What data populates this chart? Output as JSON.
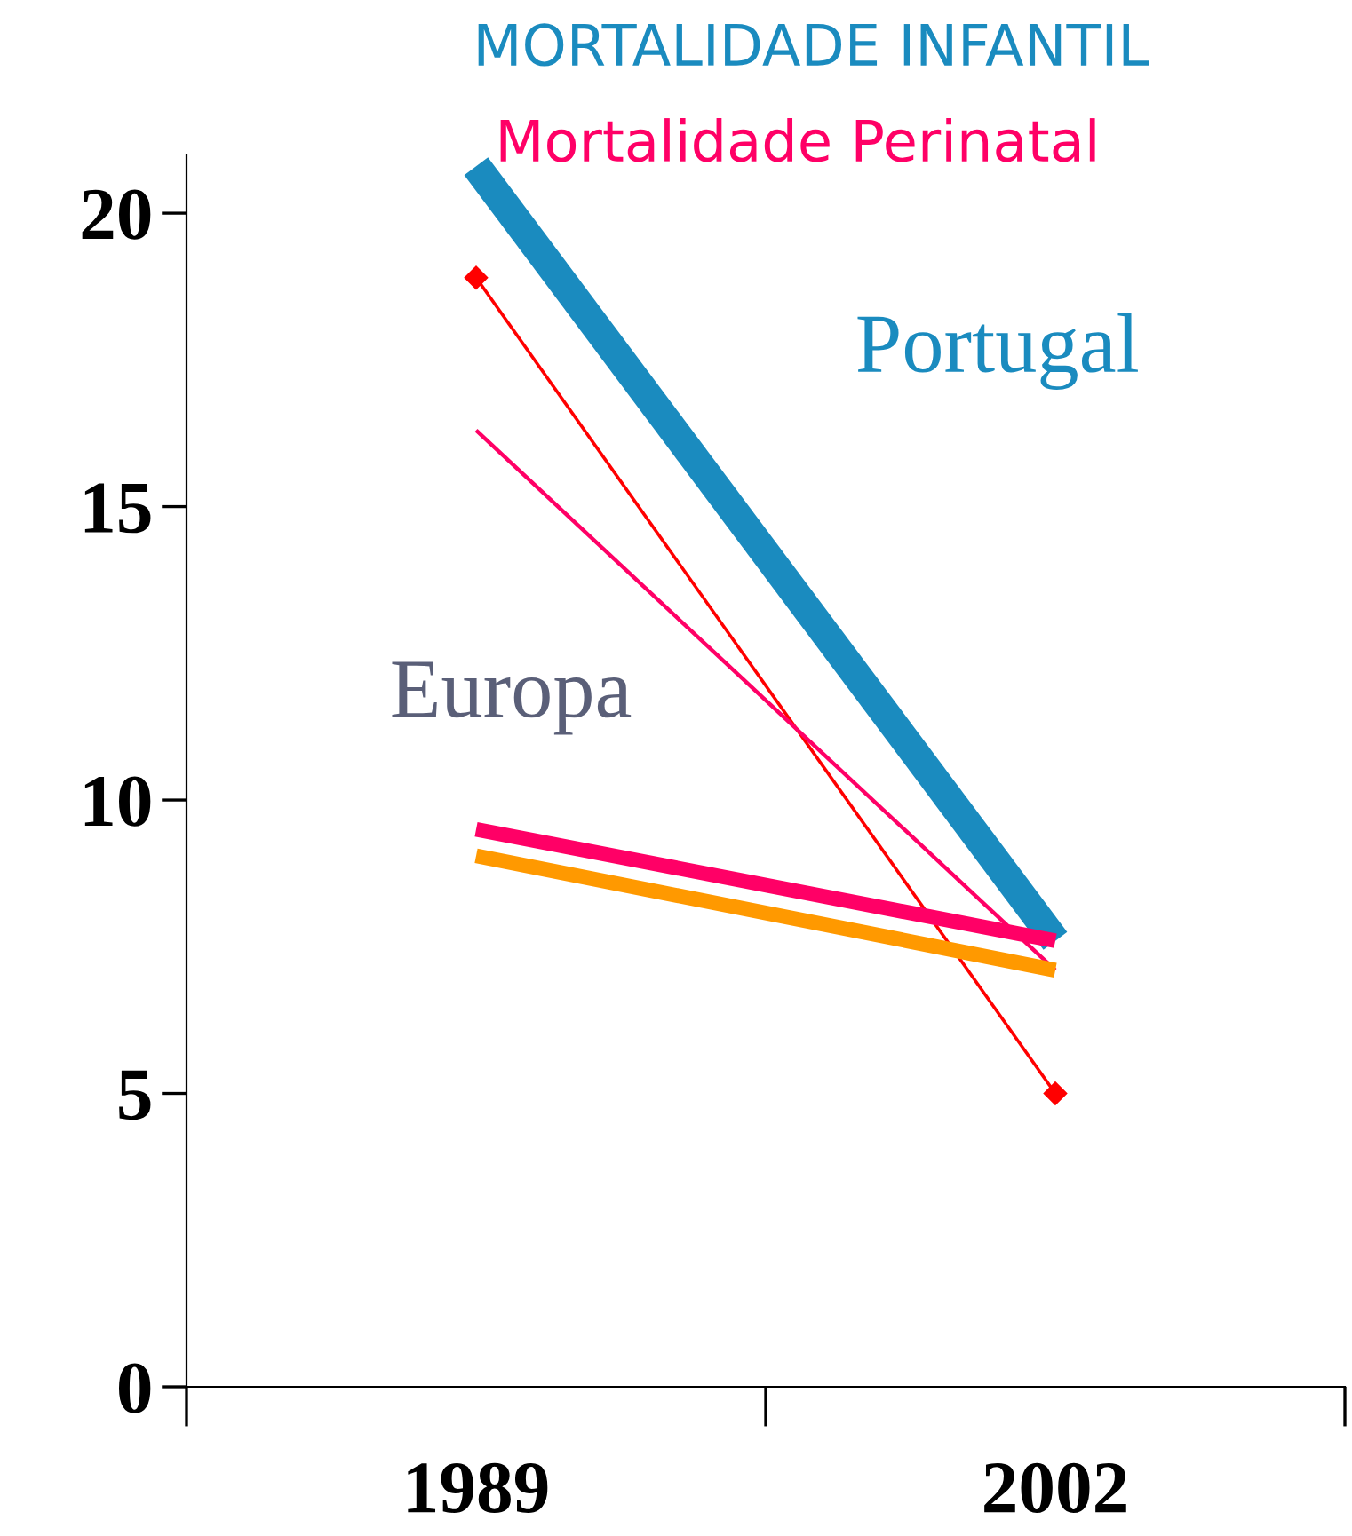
{
  "chart_data": {
    "type": "line",
    "title": "MORTALIDADE INFANTIL",
    "subtitle": "Mortalidade Perinatal",
    "categories": [
      "1989",
      "2002"
    ],
    "series": [
      {
        "color": "#1a8bbf",
        "values": [
          20.8,
          7.6
        ]
      },
      {
        "color": "#ff0000",
        "values": [
          18.9,
          5.0
        ],
        "marker": "diamond"
      },
      {
        "color": "#ff0066",
        "values": [
          16.3,
          7.1
        ]
      },
      {
        "color": "#ff0066",
        "values": [
          9.5,
          7.6
        ]
      },
      {
        "color": "#ff9900",
        "values": [
          9.05,
          7.1
        ]
      }
    ],
    "annotations": [
      "Portugal",
      "Europa"
    ],
    "ylim": [
      0,
      21
    ],
    "yticks": [
      0,
      5,
      10,
      15,
      20
    ],
    "grid": false,
    "legend": false,
    "marker": "none"
  }
}
